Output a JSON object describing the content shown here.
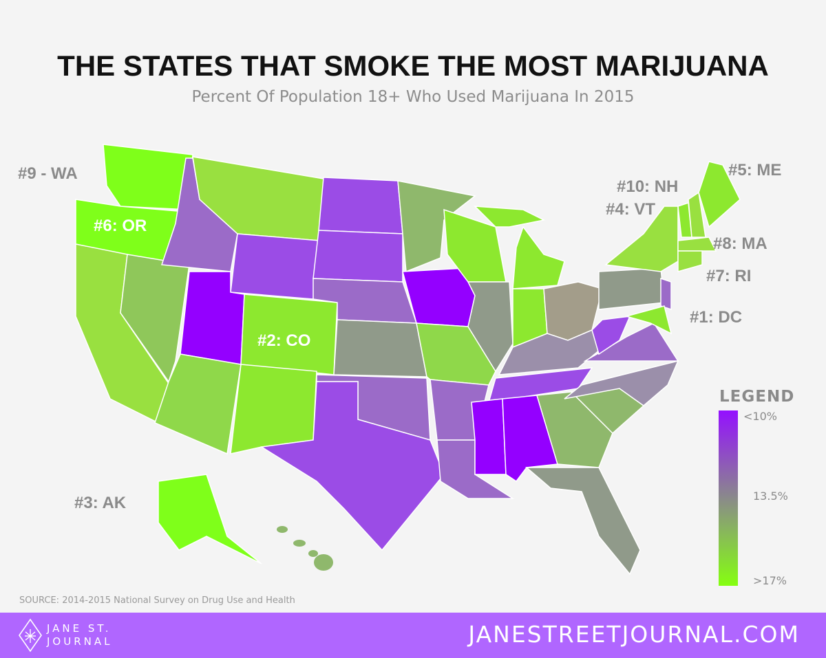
{
  "header": {
    "title": "THE STATES THAT SMOKE THE MOST MARIJUANA",
    "subtitle": "Percent Of Population 18+ Who Used Marijuana In 2015"
  },
  "rankings": [
    {
      "label": "#1: DC",
      "state": "DC",
      "rank": 1
    },
    {
      "label": "#2: CO",
      "state": "CO",
      "rank": 2
    },
    {
      "label": "#3: AK",
      "state": "AK",
      "rank": 3
    },
    {
      "label": "#4: VT",
      "state": "VT",
      "rank": 4
    },
    {
      "label": "#5: ME",
      "state": "ME",
      "rank": 5
    },
    {
      "label": "#6: OR",
      "state": "OR",
      "rank": 6
    },
    {
      "label": "#7: RI",
      "state": "RI",
      "rank": 7
    },
    {
      "label": "#8: MA",
      "state": "MA",
      "rank": 8
    },
    {
      "label": "#9 - WA",
      "state": "WA",
      "rank": 9
    },
    {
      "label": "#10: NH",
      "state": "NH",
      "rank": 10
    }
  ],
  "legend": {
    "title": "LEGEND",
    "low": "<10%",
    "mid": "13.5%",
    "high": ">17%",
    "color_low": "#9410ff",
    "color_mid": "#8a8a8a",
    "color_high": "#85ff10"
  },
  "state_colors": {
    "WA": "#7fff1a",
    "OR": "#7fff1a",
    "CA": "#99e040",
    "NV": "#8fc75a",
    "ID": "#9b6bc8",
    "MT": "#99e040",
    "WY": "#9b4ce6",
    "UT": "#9400ff",
    "CO": "#8de82f",
    "AZ": "#8fd84a",
    "NM": "#8de82f",
    "ND": "#9b4ce6",
    "SD": "#9b4ce6",
    "NE": "#9b6bc8",
    "KS": "#909a8a",
    "OK": "#9b6bc8",
    "TX": "#9b4ce6",
    "MN": "#8fb86c",
    "IA": "#9400ff",
    "MO": "#8fd84a",
    "AR": "#9b6bc8",
    "LA": "#9b6bc8",
    "WI": "#8de82f",
    "IL": "#909a8a",
    "MI": "#8de82f",
    "IN": "#8de82f",
    "OH": "#a39d8a",
    "KY": "#9b8faa",
    "TN": "#9b4ce6",
    "MS": "#9400ff",
    "AL": "#9400ff",
    "GA": "#8fb86c",
    "FL": "#909a8a",
    "SC": "#8fb86c",
    "NC": "#9b8faa",
    "VA": "#9b6bc8",
    "WV": "#9b4ce6",
    "PA": "#909a8a",
    "NY": "#99e040",
    "NJ": "#9b6bc8",
    "MD": "#8de82f",
    "VT": "#8de82f",
    "NH": "#99e040",
    "ME": "#8de82f",
    "MA": "#99e040",
    "CT": "#99e040",
    "AK": "#7fff1a",
    "HI": "#8fb86c"
  },
  "source": "SOURCE: 2014-2015 National Survey on Drug Use and Health",
  "footer": {
    "logo_line1": "JANE ST.",
    "logo_line2": "JOURNAL",
    "website": "JANESTREETJOURNAL.COM",
    "color": "#b066ff"
  }
}
